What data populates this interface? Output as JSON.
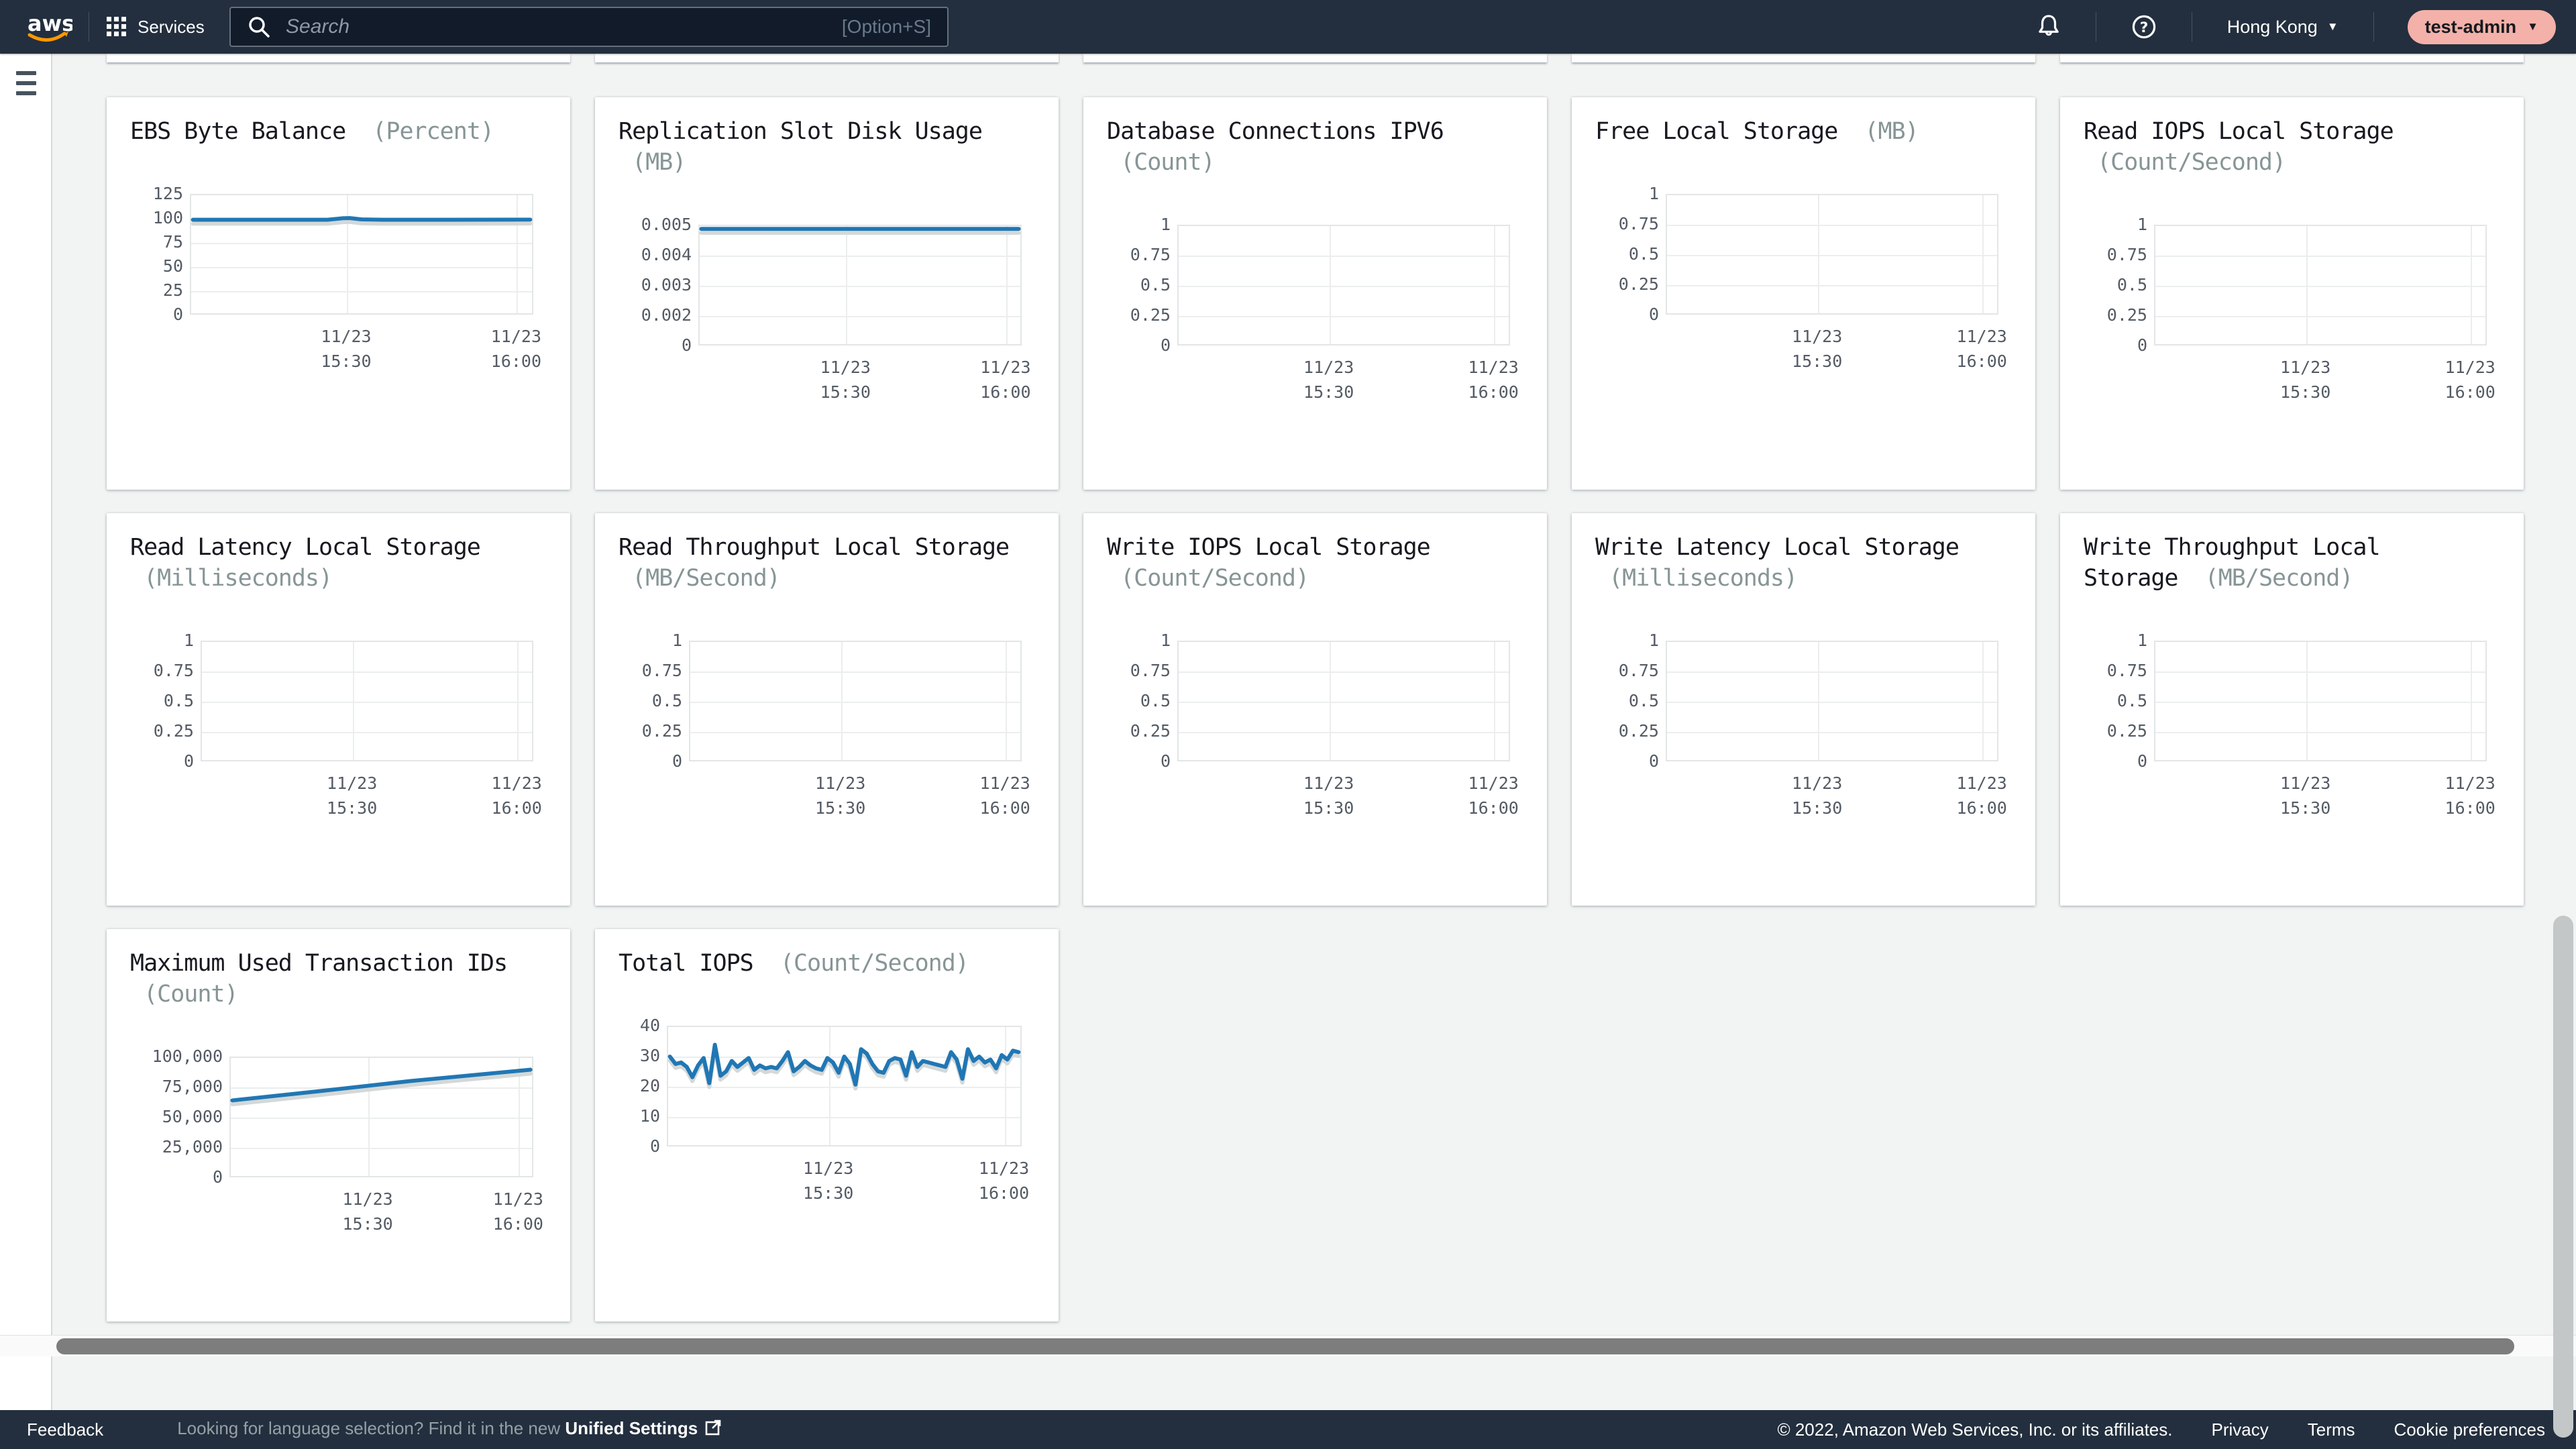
{
  "header": {
    "logo_text": "aws",
    "services_label": "Services",
    "search_placeholder": "Search",
    "search_shortcut": "[Option+S]",
    "region": "Hong Kong",
    "account": "test-admin"
  },
  "footer": {
    "feedback": "Feedback",
    "language_hint": "Looking for language selection? Find it in the new ",
    "language_link": "Unified Settings",
    "copyright": "© 2022, Amazon Web Services, Inc. or its affiliates.",
    "privacy": "Privacy",
    "terms": "Terms",
    "cookie_preferences": "Cookie preferences"
  },
  "colors": {
    "header_bg": "#232f3e",
    "page_bg": "#f2f3f3",
    "line_blue": "#2077b4",
    "account_badge_bg": "#f3b1a9",
    "title_text": "#16191f",
    "unit_text": "#879596",
    "tick_text": "#545b64"
  },
  "chart_data": [
    {
      "type": "line",
      "title": "EBS Byte Balance",
      "unit": "(Percent)",
      "y_ticks": [
        "125",
        "100",
        "75",
        "50",
        "25",
        "0"
      ],
      "y_top": 125,
      "y_bottom": 0,
      "ycol": 124,
      "x_ticks": [
        [
          "11/23",
          "15:30"
        ],
        [
          "11/23",
          "16:00"
        ]
      ],
      "x": [
        0.005,
        0.25,
        0.4,
        0.445,
        0.465,
        0.5,
        0.56,
        0.75,
        0.995
      ],
      "values": [
        99,
        99,
        99,
        100.6,
        100.8,
        99.4,
        99,
        99,
        99.2
      ]
    },
    {
      "type": "line",
      "title": "Replication Slot Disk Usage",
      "unit": "(MB)",
      "y_ticks": [
        "0.005",
        "0.004",
        "0.003",
        "0.002",
        "0"
      ],
      "y_top": 0.005,
      "y_bottom": 0,
      "ycol": 154,
      "x_ticks": [
        [
          "11/23",
          "15:30"
        ],
        [
          "11/23",
          "16:00"
        ]
      ],
      "x": [
        0.005,
        0.995
      ],
      "values": [
        0.00488,
        0.00488
      ]
    },
    {
      "type": "line",
      "title": "Database Connections IPV6",
      "unit": "(Count)",
      "y_ticks": [
        "1",
        "0.75",
        "0.5",
        "0.25",
        "0"
      ],
      "y_top": 1,
      "y_bottom": 0,
      "ycol": 140,
      "x_ticks": [
        [
          "11/23",
          "15:30"
        ],
        [
          "11/23",
          "16:00"
        ]
      ],
      "x": [],
      "values": []
    },
    {
      "type": "line",
      "title": "Free Local Storage",
      "unit": "(MB)",
      "y_ticks": [
        "1",
        "0.75",
        "0.5",
        "0.25",
        "0"
      ],
      "y_top": 1,
      "y_bottom": 0,
      "ycol": 140,
      "x_ticks": [
        [
          "11/23",
          "15:30"
        ],
        [
          "11/23",
          "16:00"
        ]
      ],
      "x": [],
      "values": []
    },
    {
      "type": "line",
      "title": "Read IOPS Local Storage",
      "unit": "(Count/Second)",
      "y_ticks": [
        "1",
        "0.75",
        "0.5",
        "0.25",
        "0"
      ],
      "y_top": 1,
      "y_bottom": 0,
      "ycol": 140,
      "x_ticks": [
        [
          "11/23",
          "15:30"
        ],
        [
          "11/23",
          "16:00"
        ]
      ],
      "x": [],
      "values": []
    },
    {
      "type": "line",
      "title": "Read Latency Local Storage",
      "unit": "(Milliseconds)",
      "y_ticks": [
        "1",
        "0.75",
        "0.5",
        "0.25",
        "0"
      ],
      "y_top": 1,
      "y_bottom": 0,
      "ycol": 140,
      "x_ticks": [
        [
          "11/23",
          "15:30"
        ],
        [
          "11/23",
          "16:00"
        ]
      ],
      "x": [],
      "values": []
    },
    {
      "type": "line",
      "title": "Read Throughput Local Storage",
      "unit": "(MB/Second)",
      "y_ticks": [
        "1",
        "0.75",
        "0.5",
        "0.25",
        "0"
      ],
      "y_top": 1,
      "y_bottom": 0,
      "ycol": 140,
      "x_ticks": [
        [
          "11/23",
          "15:30"
        ],
        [
          "11/23",
          "16:00"
        ]
      ],
      "x": [],
      "values": []
    },
    {
      "type": "line",
      "title": "Write IOPS Local Storage",
      "unit": "(Count/Second)",
      "y_ticks": [
        "1",
        "0.75",
        "0.5",
        "0.25",
        "0"
      ],
      "y_top": 1,
      "y_bottom": 0,
      "ycol": 140,
      "x_ticks": [
        [
          "11/23",
          "15:30"
        ],
        [
          "11/23",
          "16:00"
        ]
      ],
      "x": [],
      "values": []
    },
    {
      "type": "line",
      "title": "Write Latency Local Storage",
      "unit": "(Milliseconds)",
      "y_ticks": [
        "1",
        "0.75",
        "0.5",
        "0.25",
        "0"
      ],
      "y_top": 1,
      "y_bottom": 0,
      "ycol": 140,
      "x_ticks": [
        [
          "11/23",
          "15:30"
        ],
        [
          "11/23",
          "16:00"
        ]
      ],
      "x": [],
      "values": []
    },
    {
      "type": "line",
      "title": "Write Throughput Local Storage",
      "unit": "(MB/Second)",
      "y_ticks": [
        "1",
        "0.75",
        "0.5",
        "0.25",
        "0"
      ],
      "y_top": 1,
      "y_bottom": 0,
      "ycol": 140,
      "x_ticks": [
        [
          "11/23",
          "15:30"
        ],
        [
          "11/23",
          "16:00"
        ]
      ],
      "x": [],
      "values": []
    },
    {
      "type": "line",
      "title": "Maximum Used Transaction IDs",
      "unit": "(Count)",
      "y_ticks": [
        "100,000",
        "75,000",
        "50,000",
        "25,000",
        "0"
      ],
      "y_top": 100000,
      "y_bottom": 0,
      "ycol": 183,
      "x_ticks": [
        [
          "11/23",
          "15:30"
        ],
        [
          "11/23",
          "16:00"
        ]
      ],
      "x": [
        0.005,
        0.3,
        0.6,
        0.995
      ],
      "values": [
        64000,
        72000,
        80500,
        90000
      ]
    },
    {
      "type": "line",
      "title": "Total IOPS",
      "unit": "(Count/Second)",
      "y_ticks": [
        "40",
        "30",
        "20",
        "10",
        "0"
      ],
      "y_top": 40,
      "y_bottom": 0,
      "ycol": 107,
      "x_ticks": [
        [
          "11/23",
          "15:30"
        ],
        [
          "11/23",
          "16:00"
        ]
      ],
      "x": [],
      "values": [
        30,
        27.5,
        28,
        26.5,
        23,
        27,
        29.5,
        21,
        34,
        23.5,
        25,
        28.5,
        26.5,
        28,
        29.5,
        25.5,
        27,
        26,
        26.5,
        26,
        28.5,
        31.5,
        25,
        26.5,
        28.5,
        27,
        26,
        25.5,
        29.5,
        28,
        24.5,
        30,
        27.5,
        20.5,
        32.5,
        31,
        27.5,
        25,
        24.5,
        28.5,
        29.5,
        29,
        23.5,
        31.5,
        26.5,
        28.5,
        28,
        27.5,
        27,
        26.5,
        31.5,
        29,
        22.5,
        32.5,
        28.5,
        30,
        28,
        29,
        26,
        30.5,
        29,
        32,
        31.5
      ]
    }
  ]
}
